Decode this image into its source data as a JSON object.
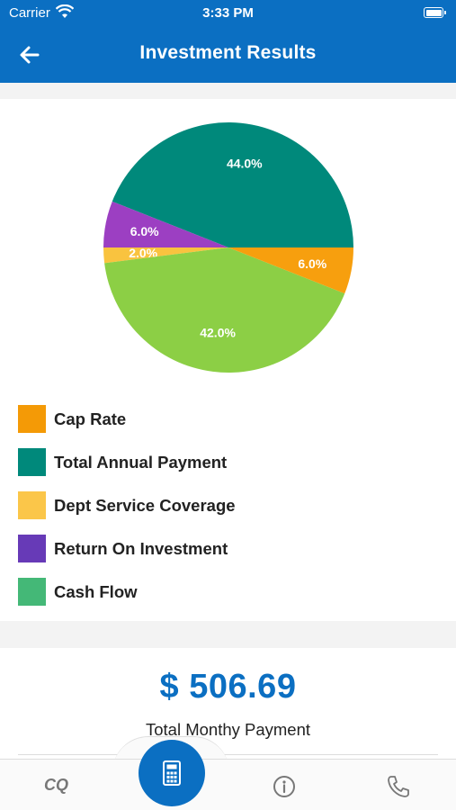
{
  "status_bar": {
    "carrier": "Carrier",
    "time": "3:33 PM"
  },
  "header": {
    "title": "Investment Results"
  },
  "chart_data": {
    "type": "pie",
    "slices": [
      {
        "label": "Total Annual Payment",
        "value": 44.0,
        "color": "#00897b"
      },
      {
        "label": "Return On Investment",
        "value": 6.0,
        "color": "#9c3fc2"
      },
      {
        "label": "Dept Service Coverage",
        "value": 2.0,
        "color": "#f9c33f"
      },
      {
        "label": "Cash Flow",
        "value": 42.0,
        "color": "#8ccf45"
      },
      {
        "label": "Cap Rate",
        "value": 6.0,
        "color": "#f79f0e"
      }
    ],
    "slice_labels": [
      "44.0%",
      "6.0%",
      "2.0%",
      "42.0%",
      "6.0%"
    ]
  },
  "legend": [
    {
      "label": "Cap Rate",
      "color": "#f49a06"
    },
    {
      "label": "Total Annual Payment",
      "color": "#00897b"
    },
    {
      "label": "Dept Service Coverage",
      "color": "#fbc649"
    },
    {
      "label": "Return On Investment",
      "color": "#673ab7"
    },
    {
      "label": "Cash Flow",
      "color": "#44b877"
    }
  ],
  "summary": {
    "amount": "$ 506.69",
    "caption": "Total Monthy Payment"
  },
  "tab_bar": {
    "cq_label": "CQ",
    "calculator_icon": "calculator-icon",
    "info_icon": "info-icon",
    "phone_icon": "phone-icon",
    "accent": "#0b6fc2"
  }
}
